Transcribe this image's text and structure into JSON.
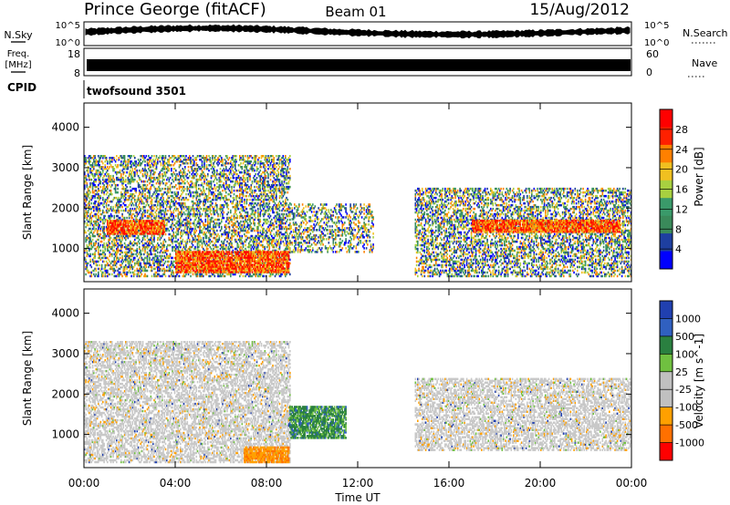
{
  "header": {
    "station": "Prince George (fitACF)",
    "beam": "Beam 01",
    "date": "15/Aug/2012"
  },
  "noise_panel": {
    "left_label": "N.Sky",
    "right_label": "N.Search",
    "left_ticks": [
      "10^5",
      "10^0"
    ],
    "right_ticks": [
      "10^5",
      "10^0"
    ]
  },
  "freq_panel": {
    "left_label_1": "Freq.",
    "left_label_2": "[MHz]",
    "right_label": "Nave",
    "left_ticks": [
      "18",
      "8"
    ],
    "right_ticks": [
      "60",
      "0"
    ]
  },
  "cpid_panel": {
    "label": "CPID",
    "program": "twofsound 3501"
  },
  "colors": {
    "power_scale": [
      "#0000ff",
      "#1e3fa0",
      "#3a8a5a",
      "#3a9a6a",
      "#a8d040",
      "#f0c020",
      "#ff8000",
      "#ff2000",
      "#ff0000"
    ],
    "velocity_scale": [
      "#2040b0",
      "#3060c0",
      "#2a8040",
      "#70c040",
      "#c0c0c0",
      "#c0c0c0",
      "#ffa000",
      "#ff7000",
      "#ff0000"
    ]
  },
  "chart_data": [
    {
      "type": "heatmap",
      "name": "power",
      "xlabel": "",
      "ylabel": "Slant Range [km]",
      "x_ticks": [
        "00:00",
        "04:00",
        "08:00",
        "12:00",
        "16:00",
        "20:00",
        "00:00"
      ],
      "xlim_hours": [
        0,
        24
      ],
      "y_ticks": [
        1000,
        2000,
        3000,
        4000
      ],
      "ylim": [
        180,
        4600
      ],
      "colorbar_label": "Power [dB]",
      "colorbar_ticks": [
        4,
        8,
        12,
        16,
        20,
        24,
        28
      ],
      "colorbar_range": [
        0,
        32
      ],
      "echo_regions": [
        {
          "t_start": 0.0,
          "t_end": 9.0,
          "range_min": 300,
          "range_max": 3300,
          "note": "dense"
        },
        {
          "t_start": 1.0,
          "t_end": 3.5,
          "range_min": 1350,
          "range_max": 1700,
          "note": "strong"
        },
        {
          "t_start": 4.0,
          "t_end": 9.0,
          "range_min": 400,
          "range_max": 900,
          "note": "strong"
        },
        {
          "t_start": 9.0,
          "t_end": 12.7,
          "range_min": 900,
          "range_max": 2100,
          "note": "scattered"
        },
        {
          "t_start": 14.5,
          "t_end": 24.0,
          "range_min": 300,
          "range_max": 2500,
          "note": "banded"
        },
        {
          "t_start": 17.0,
          "t_end": 23.5,
          "range_min": 1400,
          "range_max": 1700,
          "note": "strong"
        }
      ]
    },
    {
      "type": "heatmap",
      "name": "velocity",
      "xlabel": "Time UT",
      "ylabel": "Slant Range [km]",
      "x_ticks": [
        "00:00",
        "04:00",
        "08:00",
        "12:00",
        "16:00",
        "20:00",
        "00:00"
      ],
      "xlim_hours": [
        0,
        24
      ],
      "y_ticks": [
        1000,
        2000,
        3000,
        4000
      ],
      "ylim": [
        180,
        4600
      ],
      "colorbar_label": "Velocity [m s^-1]",
      "colorbar_ticks": [
        "1000",
        "500",
        "100",
        "25",
        "-25",
        "-100",
        "-500",
        "-1000"
      ],
      "echo_regions": [
        {
          "t_start": 0.0,
          "t_end": 9.0,
          "range_min": 300,
          "range_max": 3300,
          "note": "ground scatter"
        },
        {
          "t_start": 7.0,
          "t_end": 9.0,
          "range_min": 300,
          "range_max": 700,
          "note": "negative"
        },
        {
          "t_start": 9.0,
          "t_end": 11.5,
          "range_min": 900,
          "range_max": 1700,
          "note": "positive"
        },
        {
          "t_start": 14.5,
          "t_end": 24.0,
          "range_min": 600,
          "range_max": 2400,
          "note": "ground scatter"
        }
      ]
    }
  ]
}
